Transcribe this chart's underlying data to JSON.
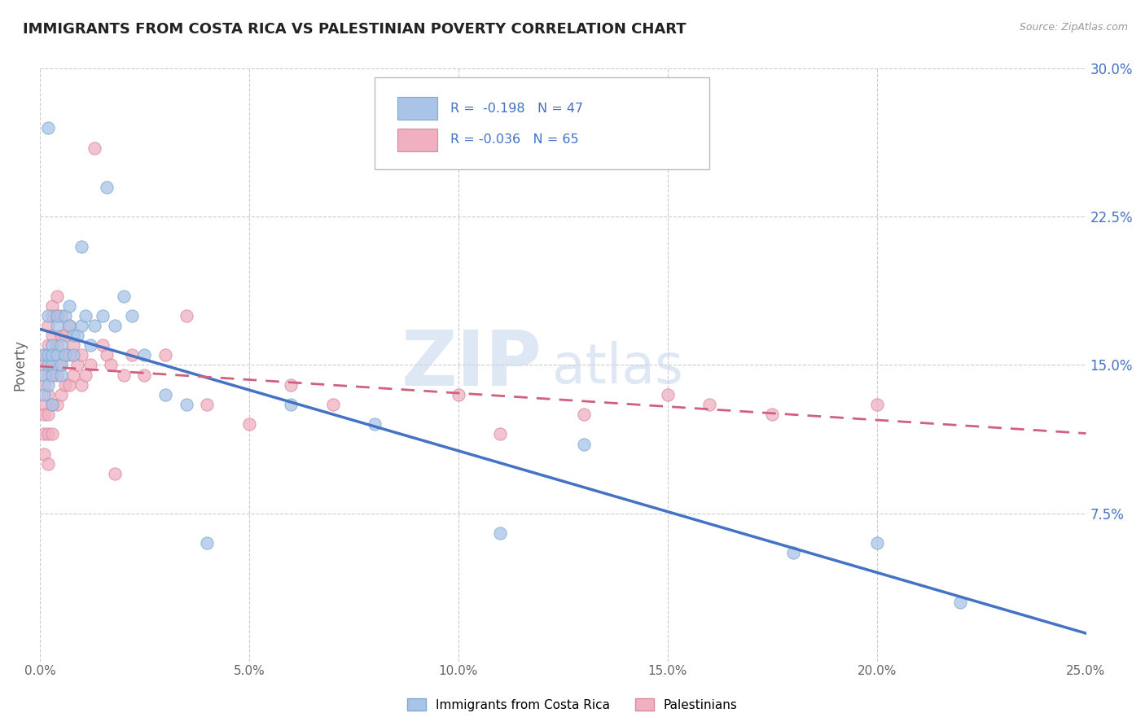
{
  "title": "IMMIGRANTS FROM COSTA RICA VS PALESTINIAN POVERTY CORRELATION CHART",
  "source": "Source: ZipAtlas.com",
  "ylabel": "Poverty",
  "xlim": [
    0.0,
    0.25
  ],
  "ylim": [
    0.0,
    0.3
  ],
  "xticks": [
    0.0,
    0.05,
    0.1,
    0.15,
    0.2,
    0.25
  ],
  "xticklabels": [
    "0.0%",
    "5.0%",
    "10.0%",
    "15.0%",
    "20.0%",
    "25.0%"
  ],
  "yticks": [
    0.0,
    0.075,
    0.15,
    0.225,
    0.3
  ],
  "yticklabels": [
    "",
    "7.5%",
    "15.0%",
    "22.5%",
    "30.0%"
  ],
  "background_color": "#ffffff",
  "grid_color": "#cccccc",
  "title_color": "#222222",
  "title_fontsize": 13,
  "tick_color_right": "#4472c4",
  "series1_color": "#aac4e8",
  "series1_edge": "#7aaad0",
  "series2_color": "#f0b0c0",
  "series2_edge": "#d888a0",
  "trend1_color": "#4472c4",
  "trend2_color": "#d06080",
  "legend_r1": "R = -0.198",
  "legend_n1": "N = 47",
  "legend_r2": "R = -0.036",
  "legend_n2": "N = 65",
  "legend_label1": "Immigrants from Costa Rica",
  "legend_label2": "Palestinians",
  "watermark_zip": "ZIP",
  "watermark_atlas": "atlas",
  "series1_x": [
    0.001,
    0.001,
    0.001,
    0.002,
    0.002,
    0.002,
    0.002,
    0.002,
    0.003,
    0.003,
    0.003,
    0.003,
    0.003,
    0.004,
    0.004,
    0.004,
    0.005,
    0.005,
    0.005,
    0.006,
    0.006,
    0.007,
    0.007,
    0.008,
    0.008,
    0.009,
    0.01,
    0.01,
    0.011,
    0.012,
    0.013,
    0.015,
    0.016,
    0.018,
    0.02,
    0.022,
    0.025,
    0.03,
    0.035,
    0.04,
    0.06,
    0.08,
    0.11,
    0.13,
    0.18,
    0.2,
    0.22
  ],
  "series1_y": [
    0.155,
    0.145,
    0.135,
    0.27,
    0.15,
    0.155,
    0.175,
    0.14,
    0.15,
    0.145,
    0.16,
    0.155,
    0.13,
    0.17,
    0.175,
    0.155,
    0.16,
    0.145,
    0.15,
    0.175,
    0.155,
    0.18,
    0.17,
    0.165,
    0.155,
    0.165,
    0.21,
    0.17,
    0.175,
    0.16,
    0.17,
    0.175,
    0.24,
    0.17,
    0.185,
    0.175,
    0.155,
    0.135,
    0.13,
    0.06,
    0.13,
    0.12,
    0.065,
    0.11,
    0.055,
    0.06,
    0.03
  ],
  "series2_x": [
    0.001,
    0.001,
    0.001,
    0.001,
    0.001,
    0.001,
    0.001,
    0.002,
    0.002,
    0.002,
    0.002,
    0.002,
    0.002,
    0.002,
    0.002,
    0.003,
    0.003,
    0.003,
    0.003,
    0.003,
    0.003,
    0.003,
    0.004,
    0.004,
    0.004,
    0.004,
    0.004,
    0.005,
    0.005,
    0.005,
    0.005,
    0.006,
    0.006,
    0.006,
    0.007,
    0.007,
    0.007,
    0.008,
    0.008,
    0.009,
    0.01,
    0.01,
    0.011,
    0.012,
    0.013,
    0.015,
    0.016,
    0.017,
    0.018,
    0.02,
    0.022,
    0.025,
    0.03,
    0.035,
    0.04,
    0.05,
    0.06,
    0.07,
    0.1,
    0.11,
    0.13,
    0.15,
    0.16,
    0.175,
    0.2
  ],
  "series2_y": [
    0.155,
    0.15,
    0.14,
    0.13,
    0.125,
    0.115,
    0.105,
    0.17,
    0.16,
    0.15,
    0.145,
    0.135,
    0.125,
    0.115,
    0.1,
    0.18,
    0.175,
    0.165,
    0.155,
    0.145,
    0.13,
    0.115,
    0.185,
    0.175,
    0.16,
    0.145,
    0.13,
    0.175,
    0.165,
    0.15,
    0.135,
    0.165,
    0.155,
    0.14,
    0.17,
    0.155,
    0.14,
    0.16,
    0.145,
    0.15,
    0.155,
    0.14,
    0.145,
    0.15,
    0.26,
    0.16,
    0.155,
    0.15,
    0.095,
    0.145,
    0.155,
    0.145,
    0.155,
    0.175,
    0.13,
    0.12,
    0.14,
    0.13,
    0.135,
    0.115,
    0.125,
    0.135,
    0.13,
    0.125,
    0.13
  ]
}
